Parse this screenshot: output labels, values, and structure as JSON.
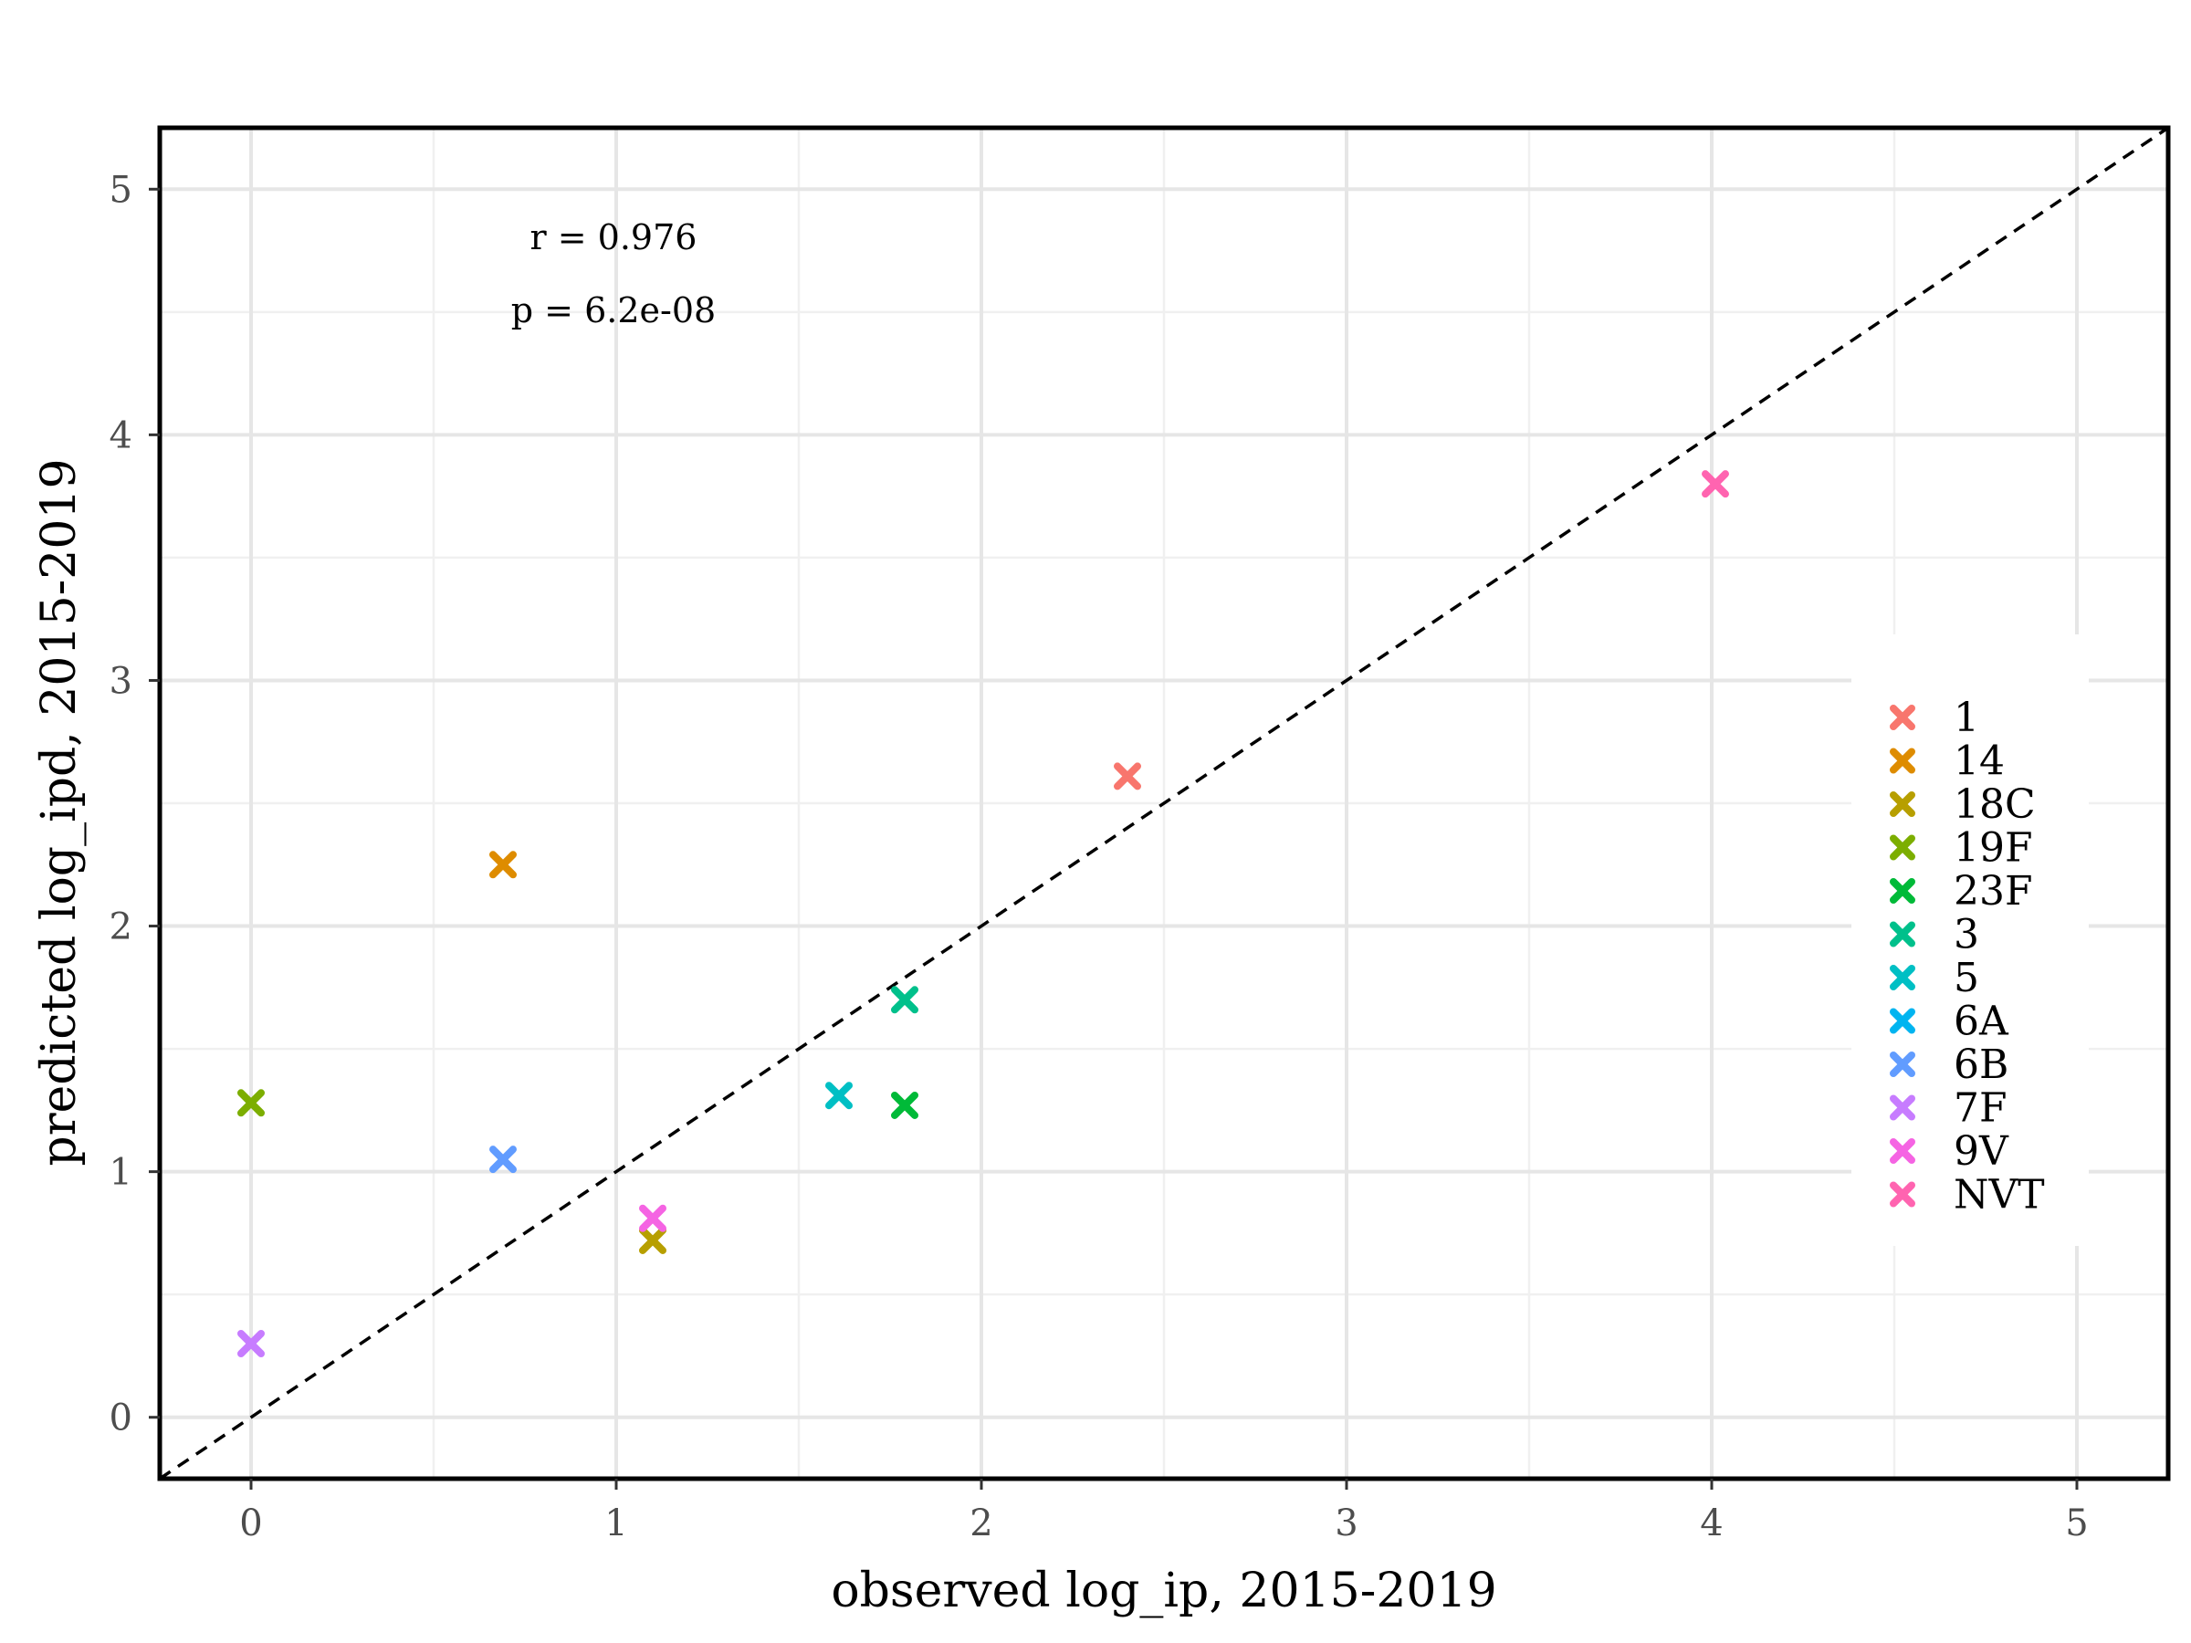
{
  "chart_data": {
    "type": "scatter",
    "title": "",
    "xlabel": "observed log_ip, 2015-2019",
    "ylabel": "predicted log_ipd, 2015-2019",
    "xlim": [
      -0.25,
      5.25
    ],
    "ylim": [
      -0.25,
      5.25
    ],
    "x_ticks": [
      0,
      1,
      2,
      3,
      4,
      5
    ],
    "y_ticks": [
      0,
      1,
      2,
      3,
      4,
      5
    ],
    "x_tick_labels": [
      "0",
      "1",
      "2",
      "3",
      "4",
      "5"
    ],
    "y_tick_labels": [
      "0",
      "1",
      "2",
      "3",
      "4",
      "5"
    ],
    "grid": true,
    "reference_line": {
      "type": "identity",
      "style": "dashed",
      "color": "#000000"
    },
    "annotations": [
      "r = 0.976",
      "p = 6.2e-08"
    ],
    "legend": {
      "position": "right"
    },
    "marker": "x",
    "series": [
      {
        "name": "1",
        "color": "#F8766D",
        "x": [
          2.4
        ],
        "y": [
          2.61
        ]
      },
      {
        "name": "14",
        "color": "#DE8C00",
        "x": [
          0.69
        ],
        "y": [
          2.25
        ]
      },
      {
        "name": "18C",
        "color": "#B79F00",
        "x": [
          1.1
        ],
        "y": [
          0.72
        ]
      },
      {
        "name": "19F",
        "color": "#7CAE00",
        "x": [
          0.0
        ],
        "y": [
          1.28
        ]
      },
      {
        "name": "23F",
        "color": "#00BA38",
        "x": [
          1.79
        ],
        "y": [
          1.27
        ]
      },
      {
        "name": "3",
        "color": "#00C08B",
        "x": [
          1.79
        ],
        "y": [
          1.7
        ]
      },
      {
        "name": "5",
        "color": "#00BFC4",
        "x": [
          1.61
        ],
        "y": [
          1.31
        ]
      },
      {
        "name": "6A",
        "color": "#00B4F0",
        "x": [],
        "y": []
      },
      {
        "name": "6B",
        "color": "#619CFF",
        "x": [
          0.69
        ],
        "y": [
          1.05
        ]
      },
      {
        "name": "7F",
        "color": "#C77CFF",
        "x": [
          0.0
        ],
        "y": [
          0.3
        ]
      },
      {
        "name": "9V",
        "color": "#F564E3",
        "x": [
          1.1
        ],
        "y": [
          0.81
        ]
      },
      {
        "name": "NVT",
        "color": "#FF64B0",
        "x": [
          4.01
        ],
        "y": [
          3.8
        ]
      }
    ]
  }
}
